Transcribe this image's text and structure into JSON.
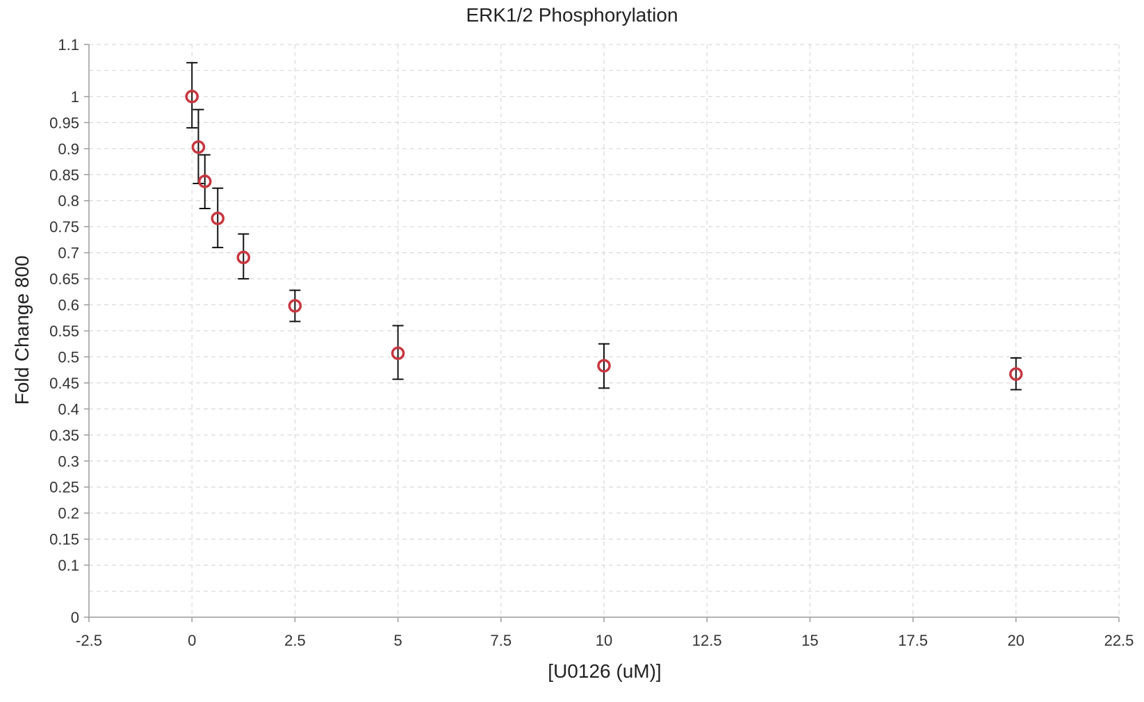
{
  "chart_data": {
    "type": "scatter",
    "title": "ERK1/2 Phosphorylation",
    "xlabel": "[U0126 (uM)]",
    "ylabel": "Fold Change 800",
    "xlim": [
      -2.5,
      22.5
    ],
    "ylim": [
      0,
      1.1
    ],
    "grid": true,
    "legend": "none",
    "marker_color": "#c8363f",
    "errorbar_color": "#111111",
    "grid_color": "#d9d9d9",
    "x_ticks": [
      -2.5,
      0,
      2.5,
      5,
      7.5,
      10,
      12.5,
      15,
      17.5,
      20,
      22.5
    ],
    "x_tick_labels": [
      "-2.5",
      "0",
      "2.5",
      "5",
      "7.5",
      "10",
      "12.5",
      "15",
      "17.5",
      "20",
      "22.5"
    ],
    "y_ticks": [
      0,
      0.1,
      0.15,
      0.2,
      0.25,
      0.3,
      0.35,
      0.4,
      0.45,
      0.5,
      0.55,
      0.6,
      0.65,
      0.7,
      0.75,
      0.8,
      0.85,
      0.9,
      0.95,
      1,
      1.1
    ],
    "y_tick_labels": [
      "0",
      "0.1",
      "0.15",
      "0.2",
      "0.25",
      "0.3",
      "0.35",
      "0.4",
      "0.45",
      "0.5",
      "0.55",
      "0.6",
      "0.65",
      "0.7",
      "0.75",
      "0.8",
      "0.85",
      "0.9",
      "0.95",
      "1",
      "1.1"
    ],
    "y_extra_gridlines": [
      0.05,
      1.05
    ],
    "points": [
      {
        "x": 0,
        "y": 1.0,
        "err_low": 0.94,
        "err_high": 1.065
      },
      {
        "x": 0.156,
        "y": 0.903,
        "err_low": 0.833,
        "err_high": 0.975
      },
      {
        "x": 0.313,
        "y": 0.837,
        "err_low": 0.785,
        "err_high": 0.888
      },
      {
        "x": 0.625,
        "y": 0.766,
        "err_low": 0.71,
        "err_high": 0.824
      },
      {
        "x": 1.25,
        "y": 0.691,
        "err_low": 0.65,
        "err_high": 0.736
      },
      {
        "x": 2.5,
        "y": 0.598,
        "err_low": 0.568,
        "err_high": 0.628
      },
      {
        "x": 5,
        "y": 0.507,
        "err_low": 0.457,
        "err_high": 0.56
      },
      {
        "x": 10,
        "y": 0.483,
        "err_low": 0.44,
        "err_high": 0.525
      },
      {
        "x": 20,
        "y": 0.467,
        "err_low": 0.437,
        "err_high": 0.498
      }
    ]
  }
}
